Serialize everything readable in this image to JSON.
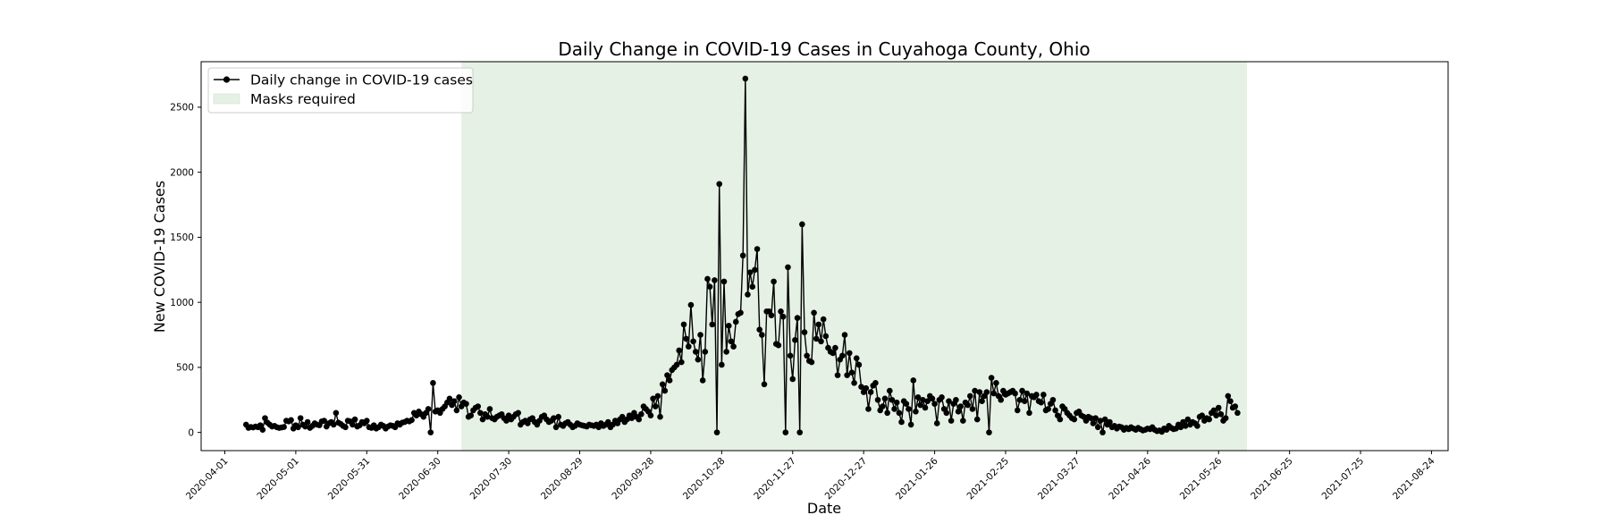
{
  "chart_data": {
    "type": "line",
    "title": "Daily Change in COVID-19 Cases in Cuyahoga County, Ohio",
    "xlabel": "Date",
    "ylabel": "New COVID-19 Cases",
    "xlim": [
      "2020-03-22",
      "2021-08-31"
    ],
    "ylim": [
      -140,
      2850
    ],
    "x_ticks": [
      "2020-04-01",
      "2020-05-01",
      "2020-05-31",
      "2020-06-30",
      "2020-07-30",
      "2020-08-29",
      "2020-09-28",
      "2020-10-28",
      "2020-11-27",
      "2020-12-27",
      "2021-01-26",
      "2021-02-25",
      "2021-03-27",
      "2021-04-26",
      "2021-05-26",
      "2021-06-25",
      "2021-07-25",
      "2021-08-24"
    ],
    "y_ticks": [
      0,
      500,
      1000,
      1500,
      2000,
      2500
    ],
    "grid": false,
    "legend_position": "top-left",
    "legend": [
      {
        "label": "Daily change in COVID-19 cases",
        "kind": "line-marker",
        "color": "#000000"
      },
      {
        "label": "Masks required",
        "kind": "patch",
        "color": "#e5f1e4"
      }
    ],
    "shaded_regions": [
      {
        "name": "Masks required",
        "start": "2020-07-10",
        "end": "2021-06-07",
        "color": "#e5f1e4"
      }
    ],
    "series": [
      {
        "name": "Daily change in COVID-19 cases",
        "color": "#000000",
        "start_date": "2020-04-10",
        "values": [
          60,
          35,
          42,
          38,
          45,
          40,
          55,
          20,
          110,
          75,
          60,
          45,
          50,
          40,
          35,
          38,
          42,
          90,
          85,
          95,
          30,
          55,
          40,
          110,
          60,
          45,
          80,
          35,
          50,
          70,
          60,
          55,
          85,
          90,
          45,
          70,
          80,
          60,
          150,
          75,
          65,
          50,
          40,
          90,
          85,
          60,
          100,
          45,
          55,
          80,
          70,
          90,
          40,
          35,
          55,
          30,
          40,
          60,
          50,
          30,
          45,
          55,
          50,
          40,
          70,
          60,
          75,
          80,
          90,
          85,
          95,
          150,
          130,
          160,
          140,
          120,
          150,
          180,
          0,
          380,
          160,
          170,
          150,
          180,
          200,
          230,
          260,
          210,
          240,
          170,
          270,
          200,
          230,
          220,
          120,
          130,
          170,
          190,
          200,
          150,
          100,
          140,
          120,
          180,
          110,
          100,
          120,
          130,
          140,
          110,
          90,
          130,
          100,
          120,
          140,
          150,
          60,
          80,
          90,
          70,
          100,
          110,
          80,
          60,
          90,
          120,
          130,
          100,
          80,
          90,
          110,
          40,
          120,
          60,
          50,
          70,
          80,
          60,
          40,
          50,
          70,
          60,
          55,
          50,
          45,
          60,
          55,
          50,
          60,
          40,
          70,
          50,
          60,
          80,
          40,
          60,
          90,
          70,
          100,
          120,
          80,
          100,
          130,
          110,
          150,
          120,
          100,
          140,
          200,
          180,
          160,
          130,
          260,
          200,
          280,
          120,
          370,
          320,
          440,
          400,
          480,
          500,
          520,
          630,
          540,
          830,
          720,
          660,
          980,
          700,
          620,
          560,
          750,
          400,
          620,
          1180,
          1120,
          830,
          1170,
          0,
          1910,
          520,
          1160,
          620,
          820,
          700,
          660,
          850,
          910,
          920,
          1360,
          2720,
          1060,
          1230,
          1120,
          1250,
          1410,
          790,
          750,
          370,
          930,
          930,
          900,
          1160,
          680,
          670,
          930,
          890,
          0,
          1270,
          590,
          410,
          710,
          880,
          0,
          1600,
          770,
          590,
          550,
          540,
          920,
          720,
          830,
          700,
          870,
          740,
          650,
          620,
          610,
          650,
          440,
          560,
          590,
          750,
          440,
          610,
          460,
          380,
          570,
          520,
          350,
          310,
          340,
          180,
          310,
          360,
          380,
          250,
          170,
          200,
          260,
          150,
          320,
          250,
          180,
          230,
          150,
          80,
          240,
          220,
          180,
          60,
          400,
          160,
          270,
          210,
          250,
          190,
          240,
          280,
          260,
          220,
          70,
          250,
          270,
          180,
          150,
          240,
          90,
          220,
          250,
          160,
          200,
          90,
          230,
          210,
          280,
          180,
          320,
          100,
          310,
          240,
          280,
          310,
          0,
          420,
          300,
          380,
          280,
          250,
          320,
          290,
          300,
          310,
          320,
          300,
          170,
          250,
          320,
          240,
          300,
          150,
          280,
          270,
          290,
          240,
          230,
          290,
          170,
          180,
          220,
          250,
          170,
          130,
          100,
          200,
          180,
          150,
          130,
          110,
          100,
          150,
          160,
          130,
          120,
          90,
          120,
          110,
          70,
          110,
          40,
          90,
          0,
          100,
          60,
          80,
          40,
          50,
          30,
          45,
          40,
          20,
          35,
          25,
          40,
          30,
          20,
          35,
          25,
          15,
          20,
          30,
          25,
          40,
          20,
          10,
          15,
          5,
          30,
          20,
          50,
          35,
          25,
          30,
          60,
          40,
          80,
          50,
          100,
          60,
          80,
          70,
          50,
          120,
          130,
          90,
          110,
          100,
          150,
          170,
          130,
          190,
          140,
          90,
          110,
          280,
          240,
          190,
          200,
          150
        ]
      }
    ]
  }
}
